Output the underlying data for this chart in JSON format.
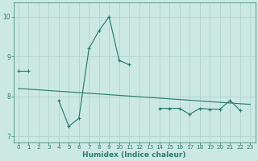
{
  "xlabel": "Humidex (Indice chaleur)",
  "ylabel": "",
  "x": [
    0,
    1,
    2,
    3,
    4,
    5,
    6,
    7,
    8,
    9,
    10,
    11,
    12,
    13,
    14,
    15,
    16,
    17,
    18,
    19,
    20,
    21,
    22,
    23
  ],
  "y_data": [
    8.65,
    8.65,
    null,
    null,
    7.9,
    7.25,
    7.45,
    9.2,
    9.65,
    10.0,
    8.9,
    8.8,
    null,
    null,
    7.7,
    7.7,
    7.7,
    7.55,
    7.7,
    7.68,
    7.68,
    7.9,
    7.65,
    null
  ],
  "y_trend_x": [
    0,
    23
  ],
  "y_trend_y": [
    8.2,
    7.8
  ],
  "line_color": "#2a7d6d",
  "bg_color": "#cce8e3",
  "grid_color": "#aacfc9",
  "text_color": "#2a7d6d",
  "xlim": [
    -0.5,
    23.5
  ],
  "ylim": [
    6.85,
    10.35
  ],
  "yticks": [
    7,
    8,
    9,
    10
  ],
  "xticks": [
    0,
    1,
    2,
    3,
    4,
    5,
    6,
    7,
    8,
    9,
    10,
    11,
    12,
    13,
    14,
    15,
    16,
    17,
    18,
    19,
    20,
    21,
    22,
    23
  ]
}
